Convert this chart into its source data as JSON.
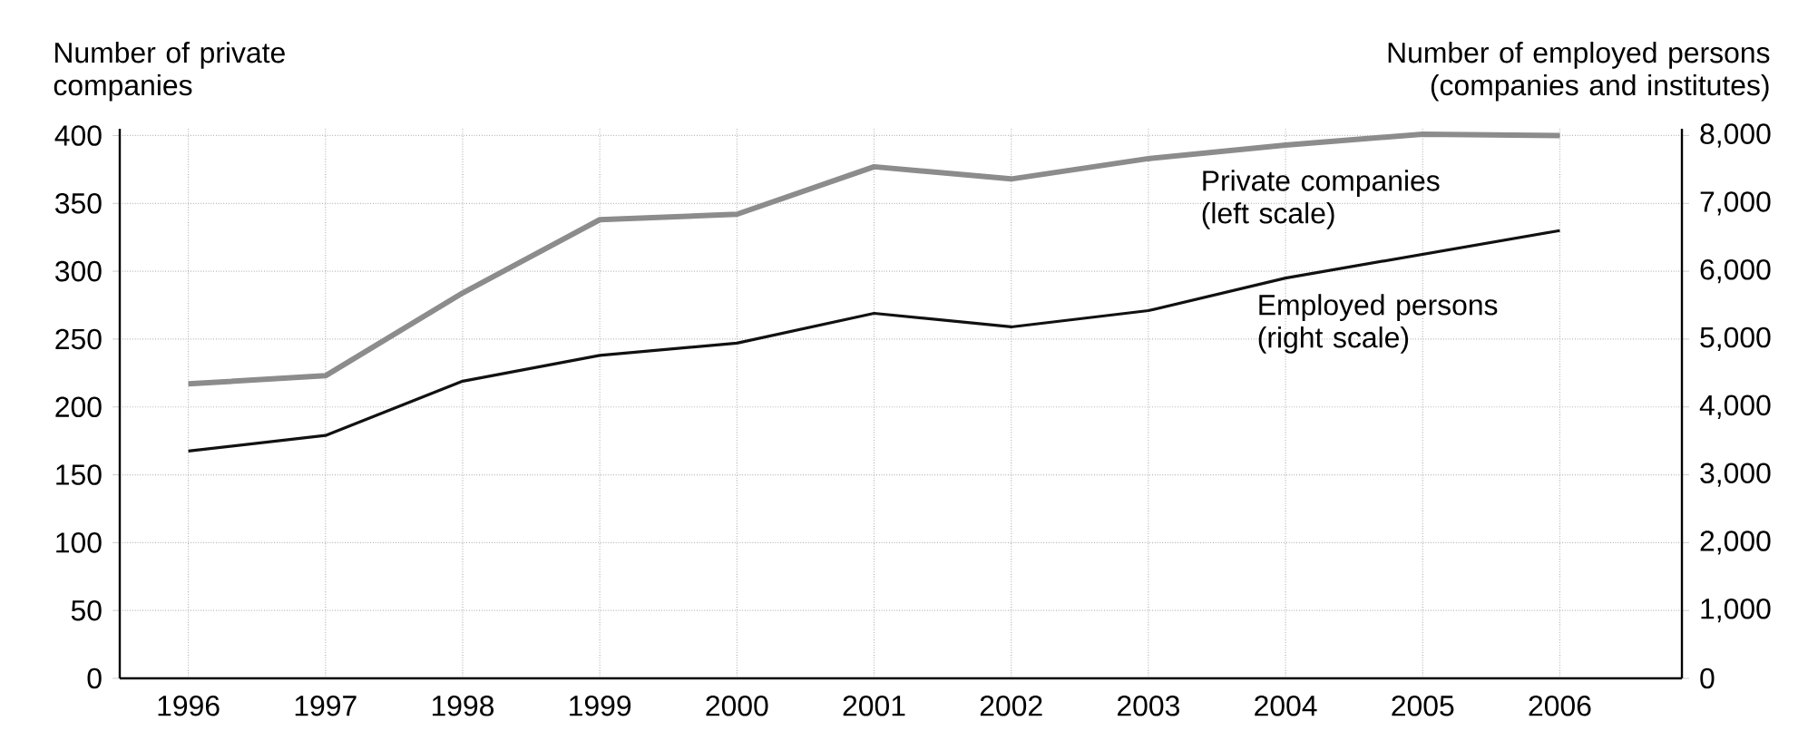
{
  "chart_data": {
    "type": "line",
    "ylabel": "Number of private companies",
    "y2label": "Number of employed persons (companies and institutes)",
    "categories": [
      "1996",
      "1997",
      "1998",
      "1999",
      "2000",
      "2001",
      "2002",
      "2003",
      "2004",
      "2005",
      "2006"
    ],
    "series": [
      {
        "name": "Private companies (left scale)",
        "color": "#8c8c8c",
        "values": [
          217,
          223,
          284,
          338,
          342,
          377,
          368,
          383,
          393,
          401,
          400
        ]
      },
      {
        "name": "Employed persons (right scale)",
        "color": "#111111",
        "axis": "y2",
        "values": [
          3350,
          3580,
          4380,
          4760,
          4940,
          5380,
          5180,
          5420,
          5900,
          6250,
          6600
        ]
      }
    ],
    "ylim": [
      0,
      405
    ],
    "yticks": [
      0,
      50,
      100,
      150,
      200,
      250,
      300,
      350,
      400
    ],
    "y2lim": [
      0,
      8100
    ],
    "y2ticks": [
      {
        "value": 0,
        "label": "0"
      },
      {
        "value": 1000,
        "label": "1,000"
      },
      {
        "value": 2000,
        "label": "2,000"
      },
      {
        "value": 3000,
        "label": "3,000"
      },
      {
        "value": 4000,
        "label": "4,000"
      },
      {
        "value": 5000,
        "label": "5,000"
      },
      {
        "value": 6000,
        "label": "6,000"
      },
      {
        "value": 7000,
        "label": "7,000"
      },
      {
        "value": 8000,
        "label": "8,000"
      }
    ],
    "grid": true
  }
}
